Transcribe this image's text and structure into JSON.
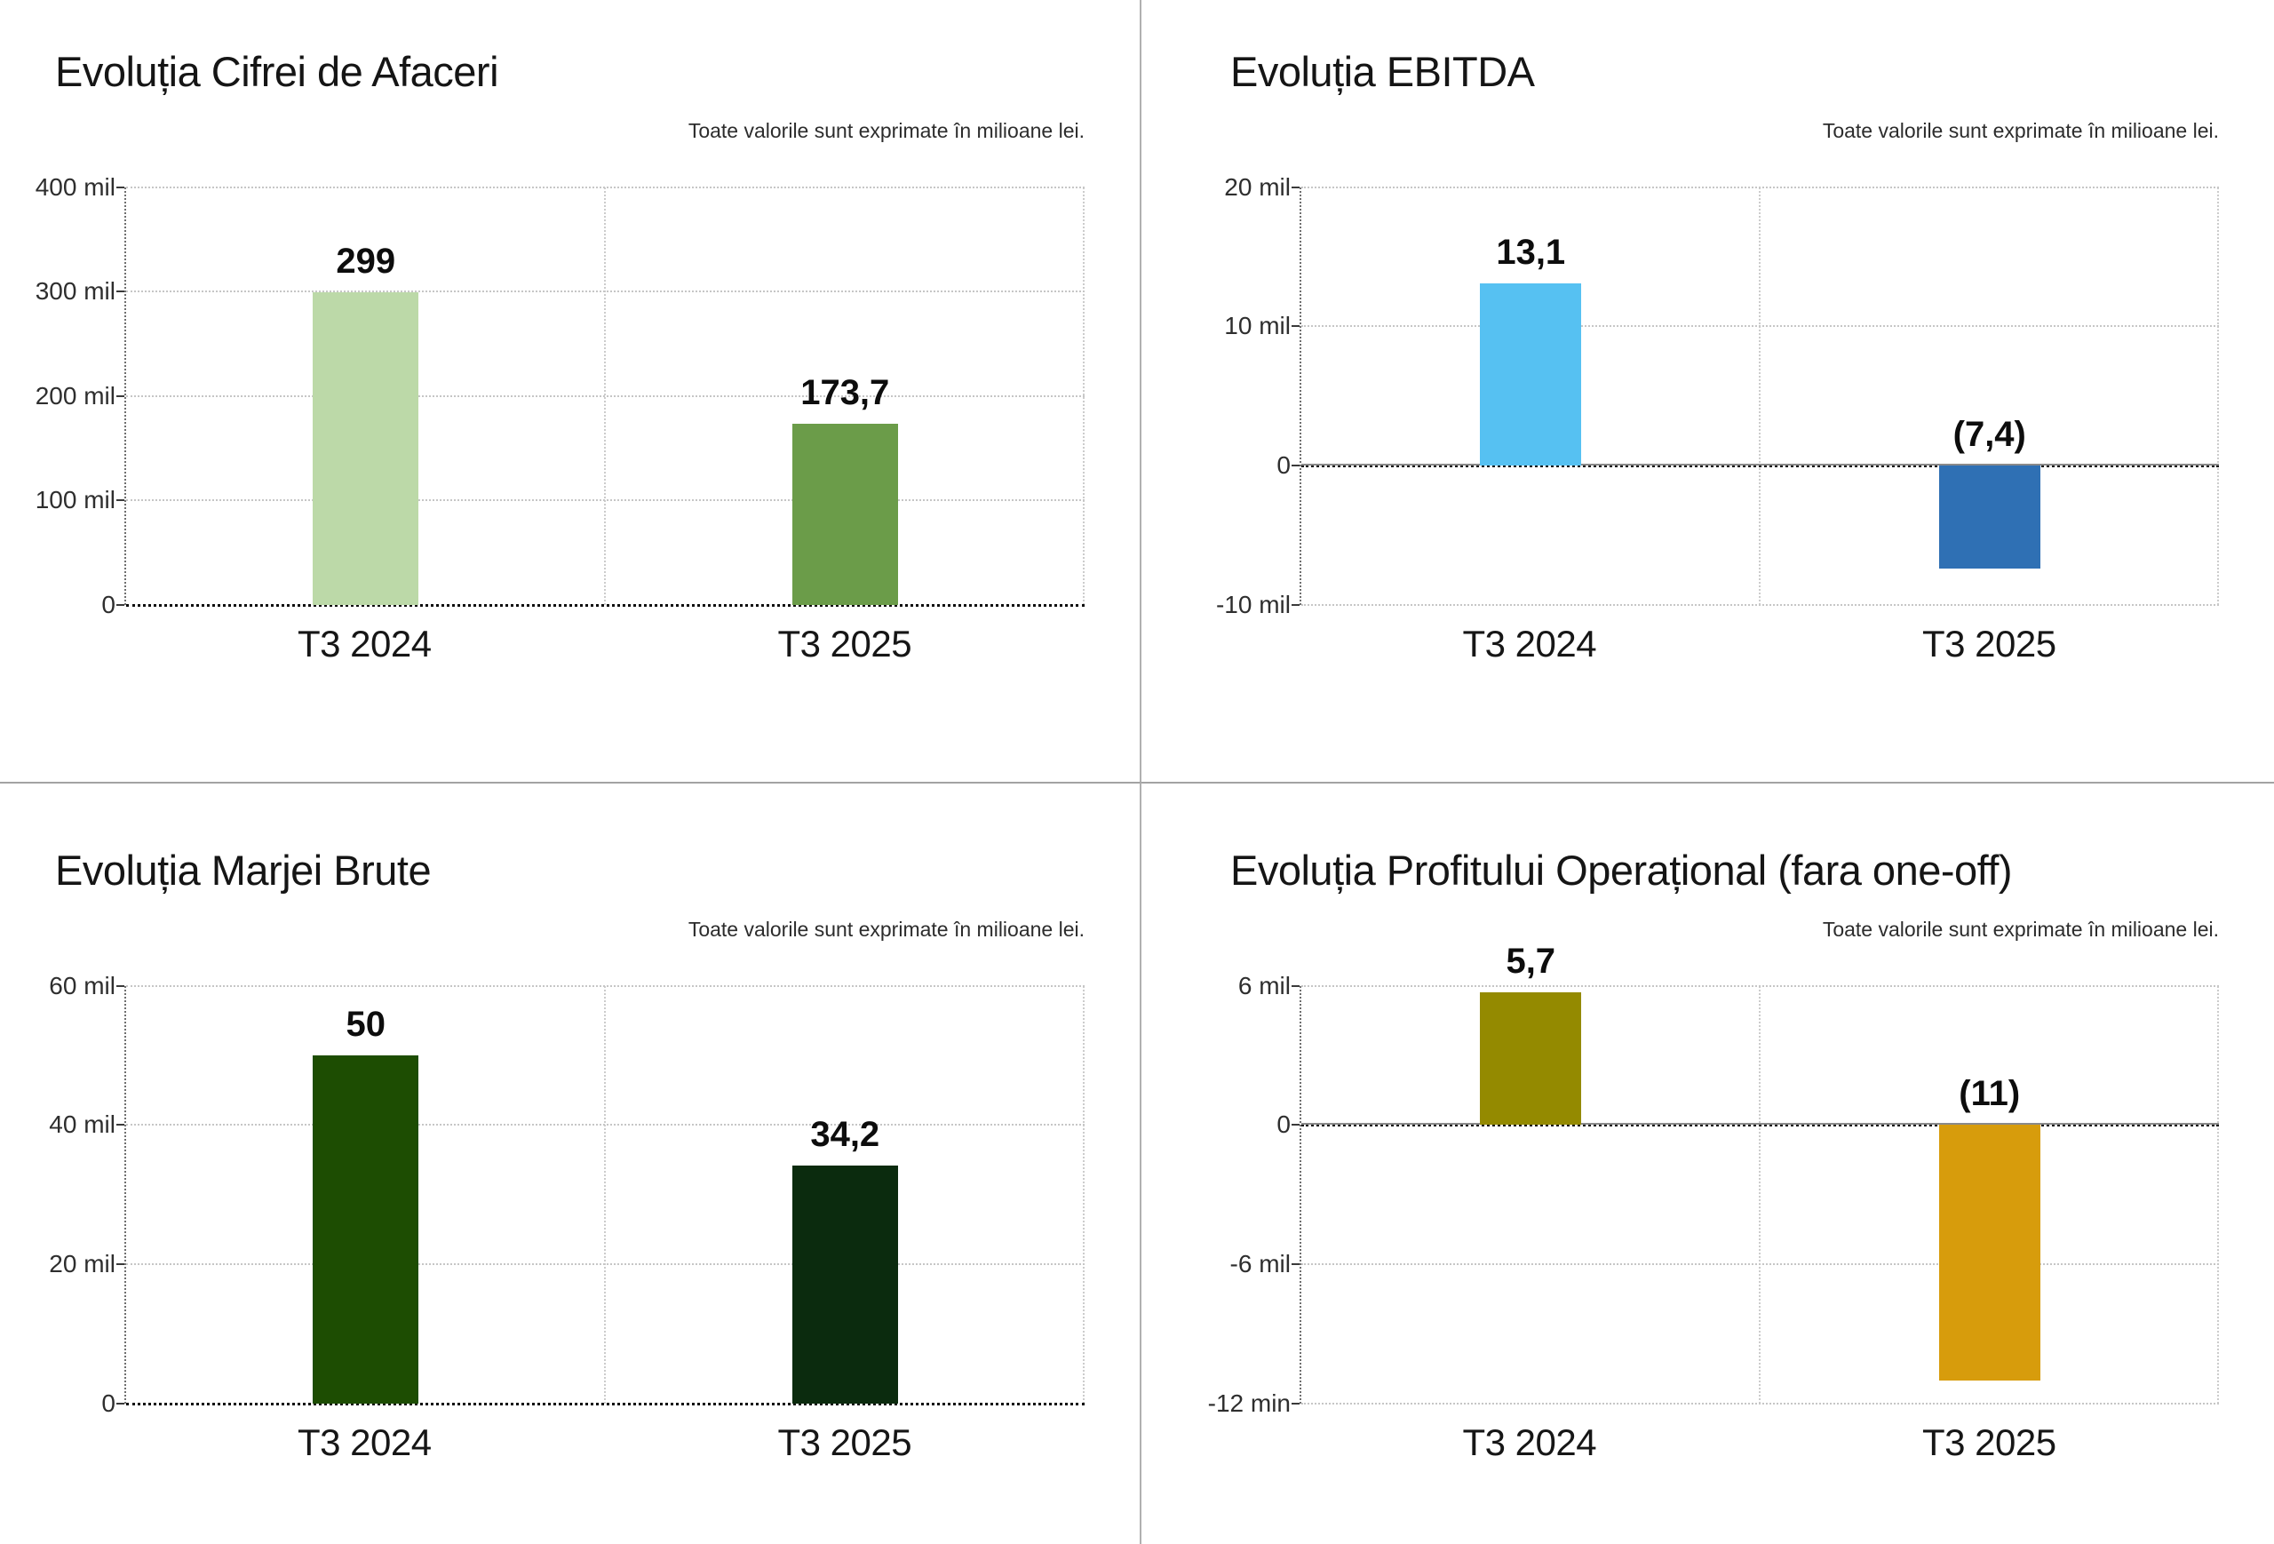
{
  "page": {
    "background": "#ffffff",
    "divider_color": "#aaaaaa"
  },
  "chart_data": [
    {
      "type": "bar",
      "title": "Evoluția Cifrei de Afaceri",
      "subtitle": "Toate valorile sunt exprimate în milioane lei.",
      "categories": [
        "T3 2024",
        "T3 2025"
      ],
      "values": [
        299,
        173.7
      ],
      "bar_labels": [
        "299",
        "173,7"
      ],
      "bar_colors": [
        "#bcd9a8",
        "#6b9c49"
      ],
      "ylim": [
        0,
        400
      ],
      "yticks": [
        {
          "label": "400 mil",
          "value": 400,
          "style": "light"
        },
        {
          "label": "300 mil",
          "value": 300,
          "style": "light"
        },
        {
          "label": "200 mil",
          "value": 200,
          "style": "light"
        },
        {
          "label": "100 mil",
          "value": 100,
          "style": "light"
        },
        {
          "label": "0",
          "value": 0,
          "style": "axis"
        }
      ],
      "grid": true,
      "legend": null
    },
    {
      "type": "bar",
      "title": "Evoluția EBITDA",
      "subtitle": "Toate valorile sunt exprimate în milioane lei.",
      "categories": [
        "T3 2024",
        "T3 2025"
      ],
      "values": [
        13.1,
        -7.4
      ],
      "bar_labels": [
        "13,1",
        "(7,4)"
      ],
      "bar_colors": [
        "#56c1f2",
        "#2f70b4"
      ],
      "ylim": [
        -10,
        20
      ],
      "yticks": [
        {
          "label": "20 mil",
          "value": 20,
          "style": "light"
        },
        {
          "label": "10 mil",
          "value": 10,
          "style": "light"
        },
        {
          "label": "0",
          "value": 0,
          "style": "zero"
        },
        {
          "label": "-10 mil",
          "value": -10,
          "style": "light"
        }
      ],
      "grid": true,
      "legend": null
    },
    {
      "type": "bar",
      "title": "Evoluția Marjei Brute",
      "subtitle": "Toate valorile sunt exprimate în milioane lei.",
      "categories": [
        "T3 2024",
        "T3 2025"
      ],
      "values": [
        50,
        34.2
      ],
      "bar_labels": [
        "50",
        "34,2"
      ],
      "bar_colors": [
        "#1d4d02",
        "#0b2b0e"
      ],
      "ylim": [
        0,
        60
      ],
      "yticks": [
        {
          "label": "60 mil",
          "value": 60,
          "style": "light"
        },
        {
          "label": "40 mil",
          "value": 40,
          "style": "light"
        },
        {
          "label": "20 mil",
          "value": 20,
          "style": "light"
        },
        {
          "label": "0",
          "value": 0,
          "style": "axis"
        }
      ],
      "grid": true,
      "legend": null
    },
    {
      "type": "bar",
      "title": "Evoluția Profitului Operațional (fara one-off)",
      "subtitle": "Toate valorile sunt exprimate în milioane lei.",
      "categories": [
        "T3 2024",
        "T3 2025"
      ],
      "values": [
        5.7,
        -11
      ],
      "bar_labels": [
        "5,7",
        "(11)"
      ],
      "bar_colors": [
        "#948a00",
        "#d79c0c"
      ],
      "ylim": [
        -12,
        6
      ],
      "yticks": [
        {
          "label": "6 mil",
          "value": 6,
          "style": "light"
        },
        {
          "label": "0",
          "value": 0,
          "style": "zero"
        },
        {
          "label": "-6 mil",
          "value": -6,
          "style": "light"
        },
        {
          "label": "-12 min",
          "value": -12,
          "style": "light"
        }
      ],
      "grid": true,
      "legend": null
    }
  ]
}
